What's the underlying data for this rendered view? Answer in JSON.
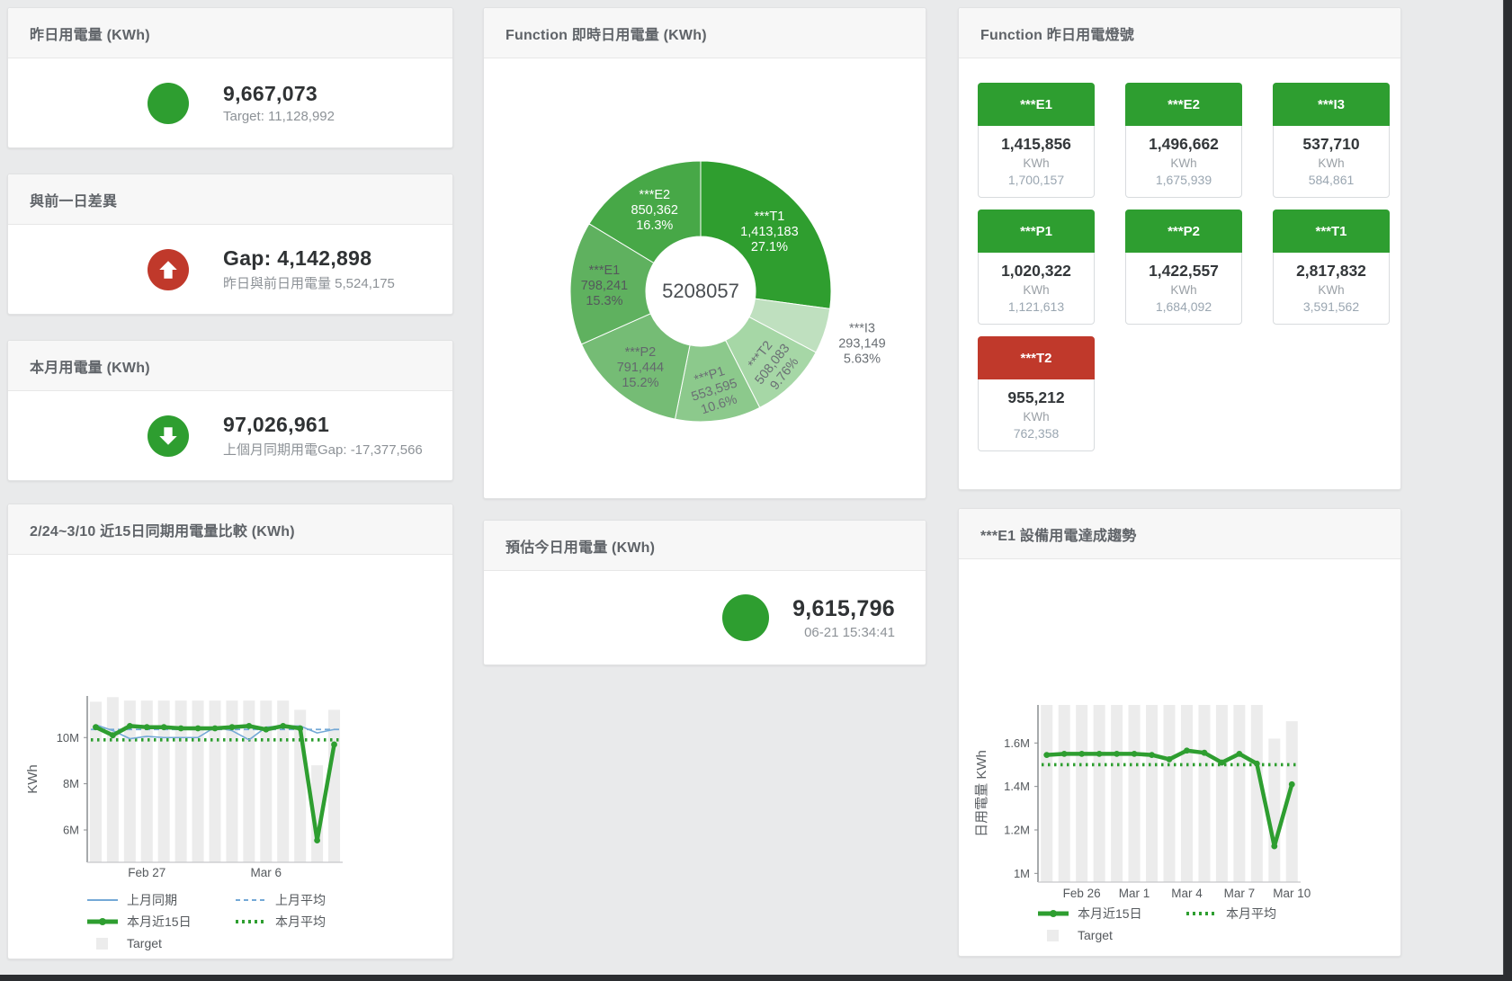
{
  "colors": {
    "green": "#2e9e30",
    "red": "#c0392b",
    "blue_line": "#74a9d6",
    "target_bar": "#ececec"
  },
  "cards": {
    "yesterday": {
      "title": "昨日用電量 (KWh)",
      "value": "9,667,073",
      "subtitle": "Target: 11,128,992",
      "indicator": "circle-icon",
      "indicator_color": "#2e9e30"
    },
    "day_gap": {
      "title": "與前一日差異",
      "value": "Gap: 4,142,898",
      "subtitle": "昨日與前日用電量 5,524,175",
      "indicator": "up-arrow-icon",
      "indicator_color": "#c0392b"
    },
    "month": {
      "title": "本月用電量 (KWh)",
      "value": "97,026,961",
      "subtitle": "上個月同期用電Gap: -17,377,566",
      "indicator": "down-arrow-icon",
      "indicator_color": "#2e9e30"
    },
    "today_estimate": {
      "title": "預估今日用電量 (KWh)",
      "value": "9,615,796",
      "subtitle": "06-21 15:34:41",
      "indicator": "circle-icon",
      "indicator_color": "#2e9e30"
    }
  },
  "lights": {
    "title": "Function 昨日用電燈號",
    "unit": "KWh",
    "status_colors": {
      "green": "#2e9e30",
      "red": "#c0392b"
    },
    "tiles": [
      {
        "name": "***E1",
        "value": "1,415,856",
        "target": "1,700,157",
        "status": "green"
      },
      {
        "name": "***E2",
        "value": "1,496,662",
        "target": "1,675,939",
        "status": "green"
      },
      {
        "name": "***I3",
        "value": "537,710",
        "target": "584,861",
        "status": "green"
      },
      {
        "name": "***P1",
        "value": "1,020,322",
        "target": "1,121,613",
        "status": "green"
      },
      {
        "name": "***P2",
        "value": "1,422,557",
        "target": "1,684,092",
        "status": "green"
      },
      {
        "name": "***T1",
        "value": "2,817,832",
        "target": "3,591,562",
        "status": "green"
      },
      {
        "name": "***T2",
        "value": "955,212",
        "target": "762,358",
        "status": "red"
      }
    ]
  },
  "chart_data": [
    {
      "type": "pie",
      "title": "Function 即時日用電量 (KWh)",
      "center_total": "5208057",
      "donut": true,
      "slices": [
        {
          "label": "***T1",
          "value": 1413183,
          "display_value": "1,413,183",
          "pct": "27.1%",
          "color": "#2f9e2f",
          "text": "#ffffff",
          "placement": "inside",
          "rotate": 0,
          "lr": 0.7
        },
        {
          "label": "***I3",
          "value": 293149,
          "display_value": "293,149",
          "pct": "5.63%",
          "color": "#bfe0bf",
          "text": "#6a6f74",
          "placement": "outside",
          "rotate": 0,
          "lr": 1.3
        },
        {
          "label": "***T2",
          "value": 508083,
          "display_value": "508,083",
          "pct": "9.76%",
          "color": "#a6d7a6",
          "text": "#6a6f74",
          "placement": "inside",
          "rotate": -52,
          "lr": 0.78
        },
        {
          "label": "***P1",
          "value": 553595,
          "display_value": "553,595",
          "pct": "10.6%",
          "color": "#8cc98c",
          "text": "#6a6f74",
          "placement": "inside",
          "rotate": -18,
          "lr": 0.76
        },
        {
          "label": "***P2",
          "value": 791444,
          "display_value": "791,444",
          "pct": "15.2%",
          "color": "#75bc75",
          "text": "#63686d",
          "placement": "inside",
          "rotate": 0,
          "lr": 0.74
        },
        {
          "label": "***E1",
          "value": 798241,
          "display_value": "798,241",
          "pct": "15.3%",
          "color": "#5fb15f",
          "text": "#54585c",
          "placement": "inside",
          "rotate": 0,
          "lr": 0.74
        },
        {
          "label": "***E2",
          "value": 850362,
          "display_value": "850,362",
          "pct": "16.3%",
          "color": "#47a847",
          "text": "#ffffff",
          "placement": "inside",
          "rotate": 0,
          "lr": 0.72
        }
      ]
    },
    {
      "type": "line",
      "title": "2/24~3/10 近15日同期用電量比較 (KWh)",
      "ylabel": "KWh",
      "n_points": 15,
      "ylim": [
        4.6,
        11.8
      ],
      "grid": false,
      "legend_position": "bottom",
      "yticks": [
        {
          "value": 6,
          "label": "6M"
        },
        {
          "value": 8,
          "label": "8M"
        },
        {
          "value": 10,
          "label": "10M"
        }
      ],
      "x_labels_shown": [
        {
          "index": 3,
          "label": "Feb 27"
        },
        {
          "index": 10,
          "label": "Mar 6"
        }
      ],
      "series": [
        {
          "name": "上月同期",
          "style": "solid-thin",
          "color": "#74a9d6",
          "values": [
            10.55,
            10.3,
            9.95,
            10.05,
            10.0,
            10.0,
            10.0,
            10.45,
            10.3,
            9.9,
            10.45,
            10.5,
            10.5,
            10.2,
            10.35
          ]
        },
        {
          "name": "上月平均",
          "style": "dashed",
          "color": "#74a9d6",
          "values_constant": 10.35
        },
        {
          "name": "本月近15日",
          "style": "solid-thick",
          "color": "#2e9e30",
          "values": [
            10.45,
            10.1,
            10.5,
            10.45,
            10.45,
            10.4,
            10.4,
            10.4,
            10.45,
            10.5,
            10.35,
            10.5,
            10.4,
            5.55,
            9.7
          ]
        },
        {
          "name": "本月平均",
          "style": "dotted",
          "color": "#2e9e30",
          "values_constant": 9.9
        },
        {
          "name": "Target",
          "style": "bar",
          "color": "#ececec",
          "values": [
            11.55,
            11.75,
            11.6,
            11.6,
            11.6,
            11.6,
            11.6,
            11.6,
            11.6,
            11.6,
            11.6,
            11.6,
            11.2,
            8.8,
            11.2
          ]
        }
      ]
    },
    {
      "type": "line",
      "title": "***E1 設備用電達成趨勢",
      "ylabel": "日用電量 KWh",
      "n_points": 15,
      "ylim": [
        0.96,
        1.775
      ],
      "grid": false,
      "legend_position": "bottom",
      "yticks": [
        {
          "value": 1,
          "label": "1M"
        },
        {
          "value": 1.2,
          "label": "1.2M"
        },
        {
          "value": 1.4,
          "label": "1.4M"
        },
        {
          "value": 1.6,
          "label": "1.6M"
        }
      ],
      "x_labels_shown": [
        {
          "index": 2,
          "label": "Feb 26"
        },
        {
          "index": 5,
          "label": "Mar 1"
        },
        {
          "index": 8,
          "label": "Mar 4"
        },
        {
          "index": 11,
          "label": "Mar 7"
        },
        {
          "index": 14,
          "label": "Mar 10"
        }
      ],
      "series": [
        {
          "name": "本月近15日",
          "style": "solid-thick",
          "color": "#2e9e30",
          "values": [
            1.545,
            1.55,
            1.55,
            1.55,
            1.55,
            1.55,
            1.545,
            1.525,
            1.565,
            1.555,
            1.51,
            1.55,
            1.505,
            1.125,
            1.41
          ]
        },
        {
          "name": "本月平均",
          "style": "dotted",
          "color": "#2e9e30",
          "values_constant": 1.5
        },
        {
          "name": "Target",
          "style": "bar",
          "color": "#ececec",
          "values": [
            1.775,
            1.775,
            1.775,
            1.775,
            1.775,
            1.775,
            1.775,
            1.775,
            1.775,
            1.775,
            1.775,
            1.775,
            1.775,
            1.62,
            1.7
          ]
        }
      ]
    }
  ]
}
